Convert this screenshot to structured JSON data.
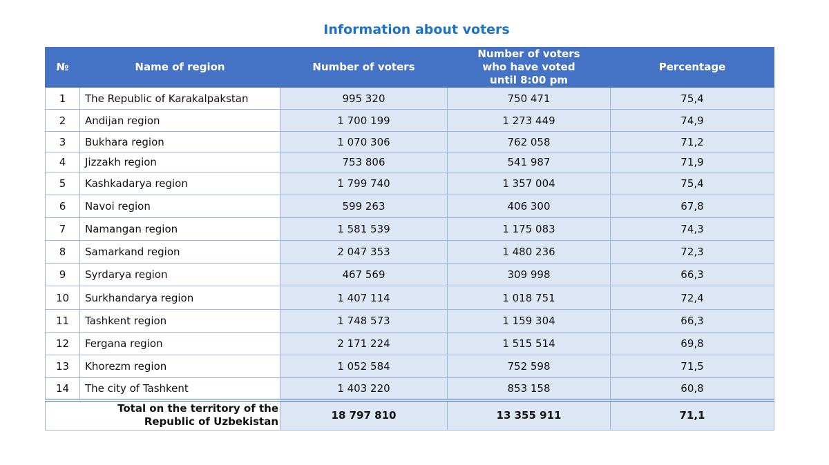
{
  "title": "Information about voters",
  "columns": [
    "№",
    "Name of region",
    "Number of voters",
    "Number of voters who have voted until 8:00 pm",
    "Percentage"
  ],
  "rows": [
    {
      "no": "1",
      "region": "The Republic of Karakalpakstan",
      "voters": "995 320",
      "voted": "750 471",
      "pct": "75,4"
    },
    {
      "no": "2",
      "region": "Andijan region",
      "voters": "1 700 199",
      "voted": "1 273 449",
      "pct": "74,9"
    },
    {
      "no": "3",
      "region": "Bukhara region",
      "voters": "1 070 306",
      "voted": "762 058",
      "pct": "71,2"
    },
    {
      "no": "4",
      "region": "Jizzakh region",
      "voters": "753 806",
      "voted": "541 987",
      "pct": "71,9"
    },
    {
      "no": "5",
      "region": "Kashkadarya region",
      "voters": "1 799 740",
      "voted": "1 357 004",
      "pct": "75,4"
    },
    {
      "no": "6",
      "region": "Navoi region",
      "voters": "599 263",
      "voted": "406 300",
      "pct": "67,8"
    },
    {
      "no": "7",
      "region": "Namangan region",
      "voters": "1 581 539",
      "voted": "1 175 083",
      "pct": "74,3"
    },
    {
      "no": "8",
      "region": "Samarkand region",
      "voters": "2 047 353",
      "voted": "1 480 236",
      "pct": "72,3"
    },
    {
      "no": "9",
      "region": "Syrdarya region",
      "voters": "467 569",
      "voted": "309 998",
      "pct": "66,3"
    },
    {
      "no": "10",
      "region": "Surkhandarya region",
      "voters": "1 407 114",
      "voted": "1 018 751",
      "pct": "72,4"
    },
    {
      "no": "11",
      "region": "Tashkent region",
      "voters": "1 748 573",
      "voted": "1 159 304",
      "pct": "66,3"
    },
    {
      "no": "12",
      "region": "Fergana region",
      "voters": "2 171 224",
      "voted": "1 515 514",
      "pct": "69,8"
    },
    {
      "no": "13",
      "region": "Khorezm region",
      "voters": "1 052 584",
      "voted": "752 598",
      "pct": "71,5"
    },
    {
      "no": "14",
      "region": "The city of Tashkent",
      "voters": "1 403 220",
      "voted": "853 158",
      "pct": "60,8"
    }
  ],
  "total": {
    "label": "Total on the territory of the Republic of Uzbekistan",
    "voters": "18 797 810",
    "voted": "13 355 911",
    "pct": "71,1"
  },
  "colors": {
    "header_bg": "#4472c4",
    "title": "#1f72c0",
    "cell_bg": "#dce6f4"
  }
}
